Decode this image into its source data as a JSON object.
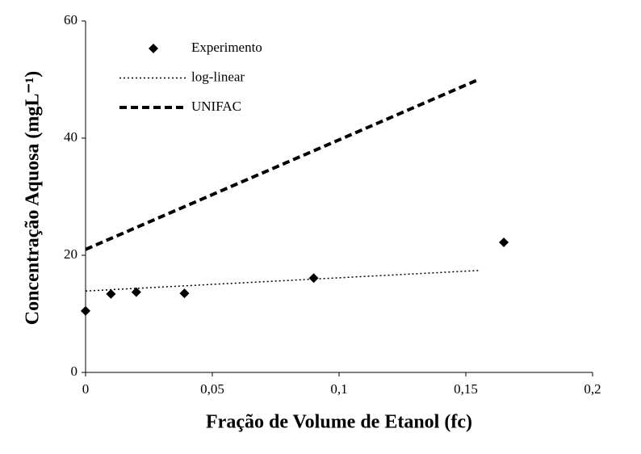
{
  "chart_data": {
    "type": "scatter",
    "x_label": "Fração de Volume de Etanol (fc)",
    "y_label": "Concentração Aquosa (mgL⁻¹)",
    "xlim": [
      0,
      0.2
    ],
    "xticks": [
      0,
      {
        "value": 0.05,
        "label": "0,05"
      },
      {
        "value": 0.1,
        "label": "0,1"
      },
      {
        "value": 0.15,
        "label": "0,15"
      },
      {
        "value": 0.2,
        "label": "0,2"
      }
    ],
    "ylim": [
      0,
      60
    ],
    "yticks": [
      0,
      20,
      40,
      60
    ],
    "series": [
      {
        "name": "Experimento",
        "kind": "points",
        "color": "#000000",
        "x": [
          0,
          0.01,
          0.02,
          0.039,
          0.09,
          0.165
        ],
        "values": [
          10.5,
          13.4,
          13.7,
          13.5,
          16.1,
          22.2
        ]
      },
      {
        "name": "log-linear",
        "kind": "dotted",
        "color": "#000000",
        "x": [
          0,
          0.155
        ],
        "values": [
          13.9,
          17.4
        ]
      },
      {
        "name": "UNIFAC",
        "kind": "dashed",
        "color": "#000000",
        "x": [
          0,
          0.155
        ],
        "values": [
          21,
          50
        ]
      }
    ]
  }
}
